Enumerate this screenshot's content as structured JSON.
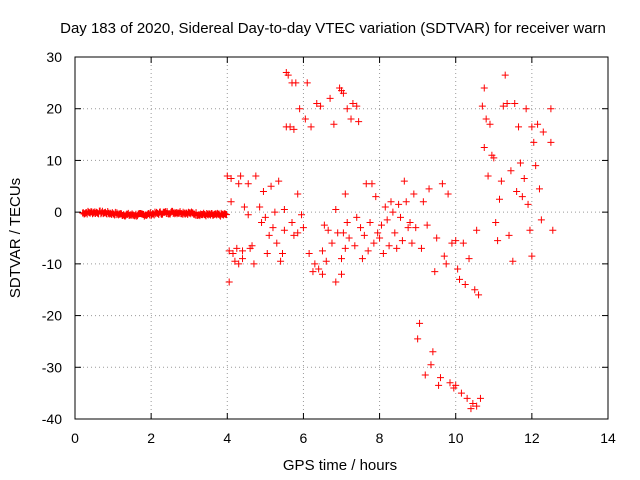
{
  "chart_data": {
    "type": "scatter",
    "title": "Day 183 of 2020, Sidereal Day-to-day VTEC variation (SDTVAR) for receiver warn",
    "xlabel": "GPS time / hours",
    "ylabel": "SDTVAR / TECUs",
    "xlim": [
      0,
      14
    ],
    "ylim": [
      -40,
      30
    ],
    "xticks": [
      0,
      2,
      4,
      6,
      8,
      10,
      12,
      14
    ],
    "yticks": [
      -40,
      -30,
      -20,
      -10,
      0,
      10,
      20,
      30
    ],
    "grid": true,
    "marker": "+",
    "color": "#ff0000",
    "dense_segment": {
      "x_start": 0.2,
      "x_end": 4.0,
      "y_approx": -0.3,
      "spread": 0.6
    },
    "points": [
      [
        4.0,
        7.0
      ],
      [
        4.05,
        -7.5
      ],
      [
        4.1,
        6.5
      ],
      [
        4.05,
        -13.5
      ],
      [
        4.1,
        2.0
      ],
      [
        4.15,
        -8.0
      ],
      [
        4.2,
        -9.5
      ],
      [
        4.25,
        -7.0
      ],
      [
        4.3,
        5.5
      ],
      [
        4.3,
        -10.0
      ],
      [
        4.35,
        7.0
      ],
      [
        4.4,
        -7.5
      ],
      [
        4.4,
        -9.0
      ],
      [
        4.45,
        1.0
      ],
      [
        4.55,
        5.5
      ],
      [
        4.55,
        -0.5
      ],
      [
        4.6,
        -7.0
      ],
      [
        4.65,
        -6.5
      ],
      [
        4.7,
        -10.0
      ],
      [
        4.75,
        7.0
      ],
      [
        4.85,
        1.0
      ],
      [
        4.9,
        -2.0
      ],
      [
        4.95,
        4.0
      ],
      [
        5.0,
        -1.0
      ],
      [
        5.05,
        -8.0
      ],
      [
        5.1,
        -4.5
      ],
      [
        5.15,
        5.0
      ],
      [
        5.2,
        -3.0
      ],
      [
        5.25,
        0.0
      ],
      [
        5.3,
        -6.0
      ],
      [
        5.35,
        6.0
      ],
      [
        5.4,
        -9.5
      ],
      [
        5.45,
        -8.0
      ],
      [
        5.5,
        0.5
      ],
      [
        5.5,
        -3.5
      ],
      [
        5.55,
        27.0
      ],
      [
        5.55,
        16.5
      ],
      [
        5.6,
        26.5
      ],
      [
        5.65,
        16.5
      ],
      [
        5.7,
        25.0
      ],
      [
        5.7,
        -2.0
      ],
      [
        5.75,
        16.0
      ],
      [
        5.75,
        -4.5
      ],
      [
        5.8,
        25.0
      ],
      [
        5.85,
        3.5
      ],
      [
        5.85,
        -4.0
      ],
      [
        5.9,
        20.0
      ],
      [
        5.95,
        -0.5
      ],
      [
        6.0,
        -3.0
      ],
      [
        6.05,
        18.0
      ],
      [
        6.1,
        25.0
      ],
      [
        6.15,
        -8.0
      ],
      [
        6.2,
        16.5
      ],
      [
        6.25,
        -11.5
      ],
      [
        6.3,
        -10.0
      ],
      [
        6.35,
        21.0
      ],
      [
        6.4,
        -11.0
      ],
      [
        6.45,
        20.5
      ],
      [
        6.5,
        -7.5
      ],
      [
        6.5,
        -12.0
      ],
      [
        6.55,
        -2.5
      ],
      [
        6.6,
        -9.5
      ],
      [
        6.65,
        -3.5
      ],
      [
        6.7,
        22.0
      ],
      [
        6.75,
        -6.0
      ],
      [
        6.8,
        17.0
      ],
      [
        6.85,
        0.5
      ],
      [
        6.85,
        -13.5
      ],
      [
        6.9,
        -4.0
      ],
      [
        6.95,
        24.0
      ],
      [
        7.0,
        23.5
      ],
      [
        7.0,
        -9.0
      ],
      [
        7.0,
        -12.0
      ],
      [
        7.05,
        23.0
      ],
      [
        7.05,
        -4.0
      ],
      [
        7.1,
        -7.0
      ],
      [
        7.1,
        3.5
      ],
      [
        7.15,
        20.0
      ],
      [
        7.15,
        -2.0
      ],
      [
        7.2,
        -5.0
      ],
      [
        7.25,
        18.0
      ],
      [
        7.3,
        21.0
      ],
      [
        7.35,
        -6.5
      ],
      [
        7.4,
        20.5
      ],
      [
        7.4,
        -1.0
      ],
      [
        7.45,
        17.5
      ],
      [
        7.5,
        -3.0
      ],
      [
        7.55,
        -9.0
      ],
      [
        7.6,
        -4.5
      ],
      [
        7.65,
        5.5
      ],
      [
        7.7,
        -7.5
      ],
      [
        7.75,
        -2.0
      ],
      [
        7.8,
        5.5
      ],
      [
        7.85,
        -6.0
      ],
      [
        7.9,
        3.0
      ],
      [
        7.95,
        -4.0
      ],
      [
        8.0,
        -5.0
      ],
      [
        8.05,
        -2.5
      ],
      [
        8.1,
        -8.0
      ],
      [
        8.15,
        1.0
      ],
      [
        8.2,
        -1.5
      ],
      [
        8.25,
        -6.5
      ],
      [
        8.3,
        2.0
      ],
      [
        8.35,
        0.0
      ],
      [
        8.4,
        -4.0
      ],
      [
        8.45,
        -7.0
      ],
      [
        8.5,
        1.5
      ],
      [
        8.55,
        -1.0
      ],
      [
        8.6,
        -5.5
      ],
      [
        8.65,
        6.0
      ],
      [
        8.7,
        2.0
      ],
      [
        8.75,
        -3.0
      ],
      [
        8.8,
        -2.0
      ],
      [
        8.85,
        -6.0
      ],
      [
        8.9,
        3.5
      ],
      [
        8.95,
        -3.0
      ],
      [
        9.0,
        -24.5
      ],
      [
        9.05,
        -21.5
      ],
      [
        9.1,
        -7.0
      ],
      [
        9.15,
        2.0
      ],
      [
        9.2,
        -31.5
      ],
      [
        9.25,
        -2.5
      ],
      [
        9.3,
        4.5
      ],
      [
        9.35,
        -29.5
      ],
      [
        9.4,
        -27.0
      ],
      [
        9.45,
        -11.5
      ],
      [
        9.5,
        -5.0
      ],
      [
        9.55,
        -33.5
      ],
      [
        9.6,
        -32.0
      ],
      [
        9.65,
        5.5
      ],
      [
        9.7,
        -8.5
      ],
      [
        9.75,
        -10.0
      ],
      [
        9.8,
        3.5
      ],
      [
        9.85,
        -33.0
      ],
      [
        9.9,
        -6.0
      ],
      [
        9.95,
        -34.0
      ],
      [
        10.0,
        -33.5
      ],
      [
        10.0,
        -5.5
      ],
      [
        10.05,
        -11.0
      ],
      [
        10.1,
        -13.0
      ],
      [
        10.15,
        -35.0
      ],
      [
        10.2,
        -6.0
      ],
      [
        10.25,
        -14.0
      ],
      [
        10.3,
        -36.0
      ],
      [
        10.35,
        -9.0
      ],
      [
        10.4,
        -38.0
      ],
      [
        10.45,
        -37.0
      ],
      [
        10.5,
        -15.0
      ],
      [
        10.55,
        -37.5
      ],
      [
        10.55,
        -3.5
      ],
      [
        10.6,
        -16.0
      ],
      [
        10.65,
        -36.0
      ],
      [
        10.7,
        20.5
      ],
      [
        10.75,
        24.0
      ],
      [
        10.75,
        12.5
      ],
      [
        10.8,
        18.0
      ],
      [
        10.85,
        7.0
      ],
      [
        10.9,
        17.0
      ],
      [
        10.95,
        11.0
      ],
      [
        11.0,
        10.5
      ],
      [
        11.05,
        -2.0
      ],
      [
        11.1,
        -5.5
      ],
      [
        11.15,
        2.5
      ],
      [
        11.2,
        6.0
      ],
      [
        11.25,
        20.5
      ],
      [
        11.3,
        26.5
      ],
      [
        11.35,
        21.0
      ],
      [
        11.4,
        -4.5
      ],
      [
        11.45,
        8.0
      ],
      [
        11.5,
        -9.5
      ],
      [
        11.55,
        21.0
      ],
      [
        11.6,
        4.0
      ],
      [
        11.65,
        16.5
      ],
      [
        11.7,
        9.5
      ],
      [
        11.75,
        3.0
      ],
      [
        11.8,
        6.5
      ],
      [
        11.85,
        20.0
      ],
      [
        11.9,
        1.5
      ],
      [
        11.95,
        -3.5
      ],
      [
        12.0,
        16.5
      ],
      [
        12.0,
        -8.5
      ],
      [
        12.05,
        13.5
      ],
      [
        12.1,
        9.0
      ],
      [
        12.15,
        17.0
      ],
      [
        12.2,
        4.5
      ],
      [
        12.25,
        -1.5
      ],
      [
        12.3,
        15.5
      ],
      [
        12.5,
        20.0
      ],
      [
        12.5,
        13.5
      ],
      [
        12.55,
        -3.5
      ]
    ]
  }
}
